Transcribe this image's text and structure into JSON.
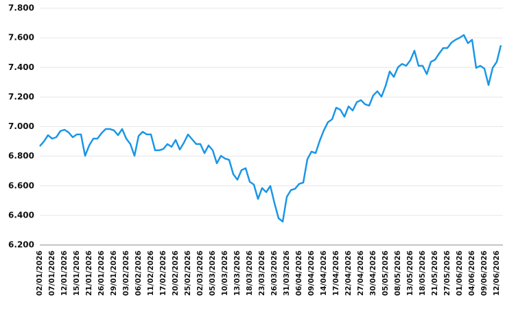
{
  "chart_data": {
    "type": "line",
    "categories": [
      "02/01/2026",
      null,
      null,
      "07/01/2026",
      null,
      null,
      "12/01/2026",
      null,
      null,
      "15/01/2026",
      null,
      null,
      "21/01/2026",
      null,
      null,
      "26/01/2026",
      null,
      null,
      "29/01/2026",
      null,
      null,
      "03/02/2026",
      null,
      null,
      "06/02/2026",
      null,
      null,
      "11/02/2026",
      null,
      null,
      "17/02/2026",
      null,
      null,
      "20/02/2026",
      null,
      null,
      "25/02/2026",
      null,
      null,
      "02/03/2026",
      null,
      null,
      "05/03/2026",
      null,
      null,
      "10/03/2026",
      null,
      null,
      "13/03/2026",
      null,
      null,
      "18/03/2026",
      null,
      null,
      "23/03/2026",
      null,
      null,
      "26/03/2026",
      null,
      null,
      "31/03/2026",
      null,
      null,
      "06/04/2026",
      null,
      null,
      "09/04/2026",
      null,
      null,
      "14/04/2026",
      null,
      null,
      "17/04/2026",
      null,
      null,
      "22/04/2026",
      null,
      null,
      "27/04/2026",
      null,
      null,
      "30/04/2026",
      null,
      null,
      "05/05/2026",
      null,
      null,
      "08/05/2026",
      null,
      null,
      "13/05/2026",
      null,
      null,
      "18/05/2026",
      null,
      null,
      "21/05/2026",
      null,
      null,
      "27/05/2026",
      null,
      null,
      "01/06/2026",
      null,
      null,
      "04/06/2026",
      null,
      null,
      "09/06/2026",
      null,
      null,
      "12/06/2026",
      null
    ],
    "values": [
      6868,
      6900,
      6942,
      6919,
      6928,
      6970,
      6979,
      6961,
      6928,
      6947,
      6947,
      6803,
      6873,
      6919,
      6919,
      6956,
      6984,
      6984,
      6975,
      6942,
      6984,
      6919,
      6882,
      6803,
      6937,
      6965,
      6947,
      6947,
      6840,
      6840,
      6849,
      6882,
      6863,
      6910,
      6845,
      6891,
      6947,
      6914,
      6882,
      6882,
      6821,
      6873,
      6840,
      6752,
      6803,
      6784,
      6775,
      6678,
      6641,
      6706,
      6719,
      6627,
      6608,
      6511,
      6585,
      6557,
      6599,
      6483,
      6381,
      6358,
      6525,
      6571,
      6580,
      6613,
      6622,
      6780,
      6831,
      6821,
      6905,
      6975,
      7030,
      7049,
      7128,
      7114,
      7067,
      7137,
      7109,
      7165,
      7179,
      7151,
      7142,
      7211,
      7239,
      7202,
      7276,
      7373,
      7336,
      7401,
      7424,
      7411,
      7448,
      7513,
      7411,
      7411,
      7355,
      7438,
      7452,
      7494,
      7531,
      7531,
      7568,
      7587,
      7601,
      7619,
      7564,
      7587,
      7397,
      7411,
      7392,
      7281,
      7397,
      7438,
      7550
    ],
    "color": "#1a96e6",
    "ylim": [
      6200,
      7800
    ],
    "yticks": [
      {
        "value": 6200,
        "label": "6.200"
      },
      {
        "value": 6400,
        "label": "6.400"
      },
      {
        "value": 6600,
        "label": "6.600"
      },
      {
        "value": 6800,
        "label": "6.800"
      },
      {
        "value": 7000,
        "label": "7.000"
      },
      {
        "value": 7200,
        "label": "7.200"
      },
      {
        "value": 7400,
        "label": "7.400"
      },
      {
        "value": 7600,
        "label": "7.600"
      },
      {
        "value": 7800,
        "label": "7.800"
      }
    ],
    "grid": true
  }
}
